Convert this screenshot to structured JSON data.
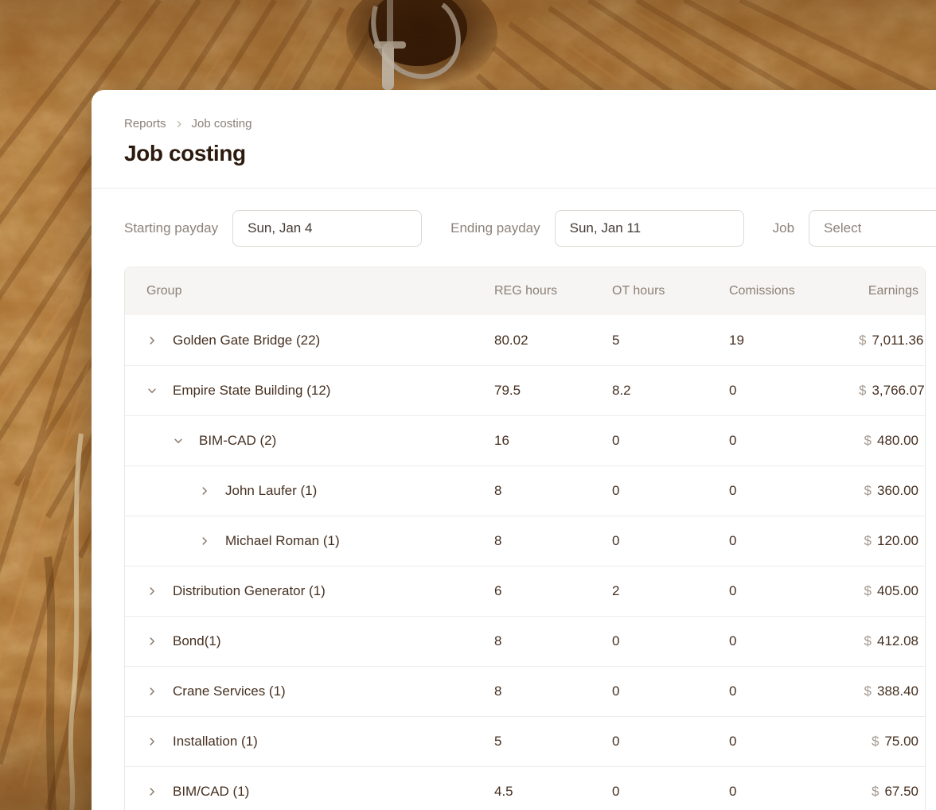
{
  "breadcrumb": {
    "items": [
      "Reports",
      "Job costing"
    ]
  },
  "page": {
    "title": "Job costing"
  },
  "filters": {
    "starting_payday": {
      "label": "Starting payday",
      "value": "Sun, Jan 4"
    },
    "ending_payday": {
      "label": "Ending payday",
      "value": "Sun, Jan 11"
    },
    "job": {
      "label": "Job",
      "placeholder": "Select"
    }
  },
  "table": {
    "columns": [
      "Group",
      "REG hours",
      "OT hours",
      "Comissions",
      "Earnings"
    ],
    "currency_symbol": "$",
    "rows": [
      {
        "level": 0,
        "expanded": false,
        "name": "Golden Gate Bridge (22)",
        "reg": "80.02",
        "ot": "5",
        "comissions": "19",
        "earnings": "7,011.36"
      },
      {
        "level": 0,
        "expanded": true,
        "name": "Empire State Building (12)",
        "reg": "79.5",
        "ot": "8.2",
        "comissions": "0",
        "earnings": "3,766.07"
      },
      {
        "level": 1,
        "expanded": true,
        "name": "BIM-CAD (2)",
        "reg": "16",
        "ot": "0",
        "comissions": "0",
        "earnings": "480.00"
      },
      {
        "level": 2,
        "expanded": false,
        "name": "John Laufer (1)",
        "reg": "8",
        "ot": "0",
        "comissions": "0",
        "earnings": "360.00"
      },
      {
        "level": 2,
        "expanded": false,
        "name": "Michael Roman (1)",
        "reg": "8",
        "ot": "0",
        "comissions": "0",
        "earnings": "120.00"
      },
      {
        "level": 0,
        "expanded": false,
        "name": "Distribution Generator (1)",
        "reg": "6",
        "ot": "2",
        "comissions": "0",
        "earnings": "405.00"
      },
      {
        "level": 0,
        "expanded": false,
        "name": "Bond(1)",
        "reg": "8",
        "ot": "0",
        "comissions": "0",
        "earnings": "412.08"
      },
      {
        "level": 0,
        "expanded": false,
        "name": "Crane Services (1)",
        "reg": "8",
        "ot": "0",
        "comissions": "0",
        "earnings": "388.40"
      },
      {
        "level": 0,
        "expanded": false,
        "name": "Installation (1)",
        "reg": "5",
        "ot": "0",
        "comissions": "0",
        "earnings": "75.00"
      },
      {
        "level": 0,
        "expanded": false,
        "name": "BIM/CAD (1)",
        "reg": "4.5",
        "ot": "0",
        "comissions": "0",
        "earnings": "67.50"
      }
    ]
  },
  "icons": {
    "breadcrumb_separator": "chevron-right",
    "row_collapsed": "chevron-right",
    "row_expanded": "chevron-down"
  },
  "colors": {
    "card_bg": "#ffffff",
    "title_text": "#2c1a0e",
    "row_text": "#463021",
    "muted_text": "#8d8279",
    "table_header_bg": "#f7f5f3",
    "table_border": "#eae7e3",
    "currency_symbol": "#a59a90",
    "dirt_base": "#a86b2d"
  }
}
